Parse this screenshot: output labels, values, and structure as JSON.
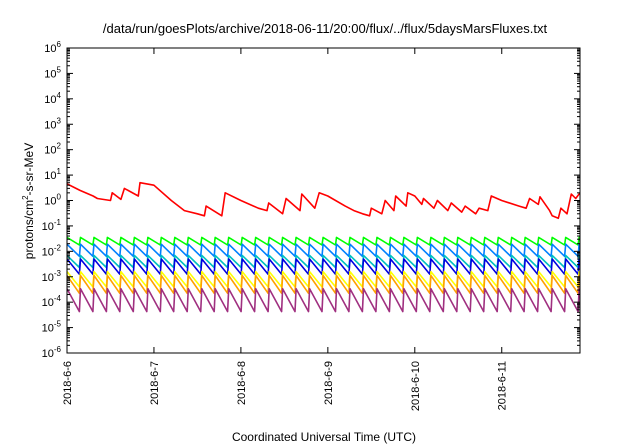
{
  "chart_data": {
    "type": "line",
    "title": "/data/run/goesPlots/archive/2018-06-11/20:00/flux/../flux/5daysMarsFluxes.txt",
    "xlabel": "Coordinated Universal Time (UTC)",
    "ylabel": {
      "prefix": "protons/cm",
      "sup": "2",
      "suffix": "-s-sr-MeV"
    },
    "y_scale": "log",
    "ylim": [
      1e-06,
      1000000.0
    ],
    "y_ticks": [
      {
        "base": "10",
        "exp": "-6",
        "v": -6
      },
      {
        "base": "10",
        "exp": "-5",
        "v": -5
      },
      {
        "base": "10",
        "exp": "-4",
        "v": -4
      },
      {
        "base": "10",
        "exp": "-3",
        "v": -3
      },
      {
        "base": "10",
        "exp": "-2",
        "v": -2
      },
      {
        "base": "10",
        "exp": "-1",
        "v": -1
      },
      {
        "base": "10",
        "exp": "0",
        "v": 0
      },
      {
        "base": "10",
        "exp": "1",
        "v": 1
      },
      {
        "base": "10",
        "exp": "2",
        "v": 2
      },
      {
        "base": "10",
        "exp": "3",
        "v": 3
      },
      {
        "base": "10",
        "exp": "4",
        "v": 4
      },
      {
        "base": "10",
        "exp": "5",
        "v": 5
      },
      {
        "base": "10",
        "exp": "6",
        "v": 6
      }
    ],
    "x_unit": "days since 2018-06-06 00:00 UTC",
    "xlim": [
      0,
      5.9
    ],
    "x_ticks": [
      {
        "label": "2018-6-6",
        "v": 0
      },
      {
        "label": "2018-6-7",
        "v": 1
      },
      {
        "label": "2018-6-8",
        "v": 2
      },
      {
        "label": "2018-6-9",
        "v": 3
      },
      {
        "label": "2018-6-10",
        "v": 4
      },
      {
        "label": "2018-6-11",
        "v": 5
      }
    ],
    "grid": false,
    "legend": "none",
    "series": [
      {
        "color": "#ff0000",
        "x": [
          0.0,
          0.15,
          0.3,
          0.35,
          0.5,
          0.52,
          0.62,
          0.66,
          0.82,
          0.84,
          1.0,
          1.2,
          1.35,
          1.5,
          1.58,
          1.6,
          1.78,
          1.82,
          2.0,
          2.2,
          2.3,
          2.32,
          2.48,
          2.52,
          2.68,
          2.7,
          2.85,
          2.9,
          3.0,
          3.2,
          3.3,
          3.4,
          3.48,
          3.5,
          3.62,
          3.66,
          3.76,
          3.78,
          3.9,
          3.92,
          4.0,
          4.08,
          4.1,
          4.22,
          4.26,
          4.38,
          4.42,
          4.54,
          4.58,
          4.7,
          4.74,
          4.84,
          4.88,
          5.0,
          5.2,
          5.28,
          5.32,
          5.42,
          5.44,
          5.55,
          5.58,
          5.65,
          5.68,
          5.75,
          5.8,
          5.85,
          5.9
        ],
        "y": [
          4.5,
          2.5,
          1.5,
          1.2,
          1.0,
          2.0,
          1.1,
          3.0,
          1.5,
          5.0,
          4.0,
          1.0,
          0.4,
          0.3,
          0.25,
          0.6,
          0.25,
          2.0,
          1.0,
          0.5,
          0.4,
          0.8,
          0.3,
          1.2,
          0.4,
          1.8,
          0.5,
          2.0,
          1.5,
          0.6,
          0.4,
          0.3,
          0.25,
          0.5,
          0.3,
          1.0,
          0.4,
          1.5,
          0.6,
          2.0,
          1.5,
          0.7,
          1.2,
          0.5,
          1.0,
          0.4,
          0.8,
          0.35,
          0.6,
          0.3,
          0.5,
          0.4,
          1.5,
          1.0,
          0.6,
          0.5,
          1.2,
          0.7,
          1.4,
          0.4,
          0.25,
          0.2,
          0.5,
          0.3,
          1.8,
          1.2,
          2.0
        ]
      },
      {
        "color": "#00ff00",
        "center": 0.025,
        "amplitude": 2.0,
        "period": 0.155
      },
      {
        "color": "#0080ff",
        "center": 0.011,
        "amplitude": 3.0,
        "period": 0.155
      },
      {
        "color": "#00c0c0",
        "center": 0.004,
        "amplitude": 3.0,
        "period": 0.155
      },
      {
        "color": "#0000e0",
        "center": 0.0025,
        "amplitude": 4.0,
        "period": 0.155
      },
      {
        "color": "#ffff00",
        "center": 0.0008,
        "amplitude": 4.0,
        "period": 0.155
      },
      {
        "color": "#ffa000",
        "center": 0.0005,
        "amplitude": 5.0,
        "period": 0.155
      },
      {
        "color": "#a03080",
        "center": 0.00012,
        "amplitude": 8.0,
        "period": 0.155
      }
    ]
  }
}
